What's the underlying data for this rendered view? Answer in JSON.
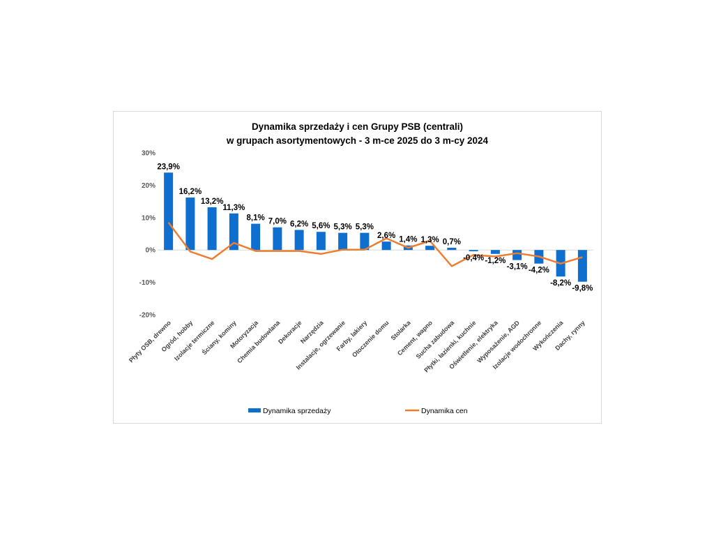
{
  "chart_data": {
    "type": "bar",
    "title": [
      "Dynamika sprzedaży i cen Grupy PSB (centrali)",
      "w grupach asortymentowych - 3 m-ce 2025 do 3 m-cy 2024"
    ],
    "categories": [
      "Płyty OSB, drewno",
      "Ogród, hobby",
      "Izolacje termiczne",
      "Ściany, kominy",
      "Motoryzacja",
      "Chemia budowlana",
      "Dekoracje",
      "Narzędzia",
      "Instalacje, ogrzewanie",
      "Farby, lakiery",
      "Otoczenie domu",
      "Stolarka",
      "Cement, wapno",
      "Sucha zabudowa",
      "Płytki, łazienki, kuchnie",
      "Oświetlenie, elektryka",
      "Wyposażenie, AGD",
      "Izolacje wodochronne",
      "Wykończenia",
      "Dachy, rynny"
    ],
    "series": [
      {
        "name": "Dynamika sprzedaży",
        "type": "bar",
        "color": "#0f6fce",
        "values": [
          23.9,
          16.2,
          13.2,
          11.3,
          8.1,
          7.0,
          6.2,
          5.6,
          5.3,
          5.3,
          2.6,
          1.4,
          1.3,
          0.7,
          -0.4,
          -1.2,
          -3.1,
          -4.2,
          -8.2,
          -9.8
        ],
        "labels": [
          "23,9%",
          "16,2%",
          "13,2%",
          "11,3%",
          "8,1%",
          "7,0%",
          "6,2%",
          "5,6%",
          "5,3%",
          "5,3%",
          "2,6%",
          "1,4%",
          "1,3%",
          "0,7%",
          "-0,4%",
          "-1,2%",
          "-3,1%",
          "-4,2%",
          "-8,2%",
          "-9,8%"
        ]
      },
      {
        "name": "Dynamika cen",
        "type": "line",
        "color": "#ed7d31",
        "values": [
          8.5,
          -0.5,
          -2.8,
          2.2,
          -0.3,
          -0.3,
          -0.3,
          -1.2,
          0.1,
          0.1,
          3.6,
          0.7,
          2.8,
          -5.0,
          -1.5,
          -2.0,
          -1.0,
          -2.0,
          -4.2,
          -2.2
        ]
      }
    ],
    "ylim": [
      -20,
      30
    ],
    "yticks": [
      30,
      20,
      10,
      0,
      -10,
      -20
    ],
    "ytick_labels": [
      "30%",
      "20%",
      "10%",
      "0%",
      "-10%",
      "-20%"
    ],
    "xlabel": "",
    "ylabel": "",
    "grid": false,
    "legend": "bottom"
  }
}
